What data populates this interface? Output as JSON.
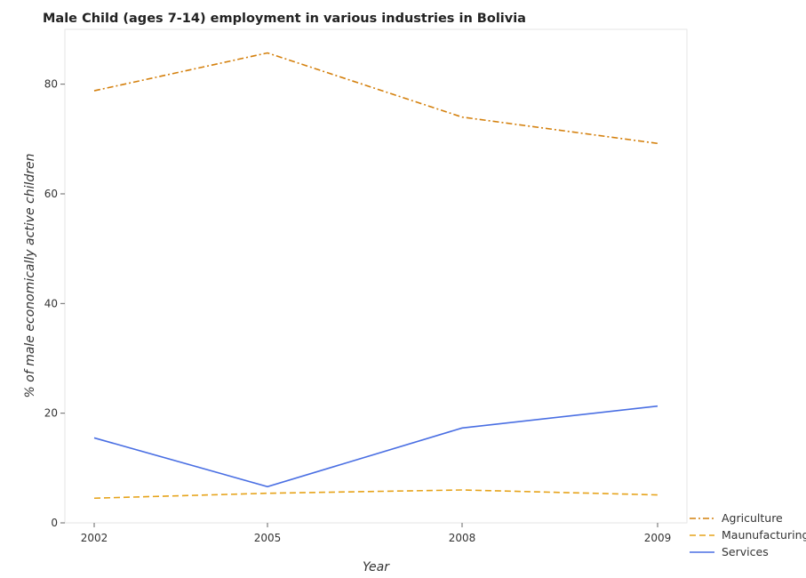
{
  "chart_data": {
    "type": "line",
    "title": "Male Child (ages 7-14) employment in various industries in Bolivia",
    "xlabel": "Year",
    "ylabel": "% of male economically active children",
    "categories": [
      "2002",
      "2005",
      "2008",
      "2009"
    ],
    "series": [
      {
        "name": "Agriculture",
        "values": [
          78.8,
          85.7,
          74.0,
          69.2
        ],
        "color": "#d4800d",
        "dash": "dashdot"
      },
      {
        "name": "Maunufacturing",
        "values": [
          4.5,
          5.4,
          6.0,
          5.1
        ],
        "color": "#e6a31a",
        "dash": "dash"
      },
      {
        "name": "Services",
        "values": [
          15.5,
          6.6,
          17.3,
          21.3
        ],
        "color": "#4a6fe3",
        "dash": "solid"
      }
    ],
    "ylim": [
      0,
      90
    ],
    "yticks": [
      0,
      20,
      40,
      60,
      80
    ],
    "grid": false,
    "legend_position": "bottom-right"
  }
}
